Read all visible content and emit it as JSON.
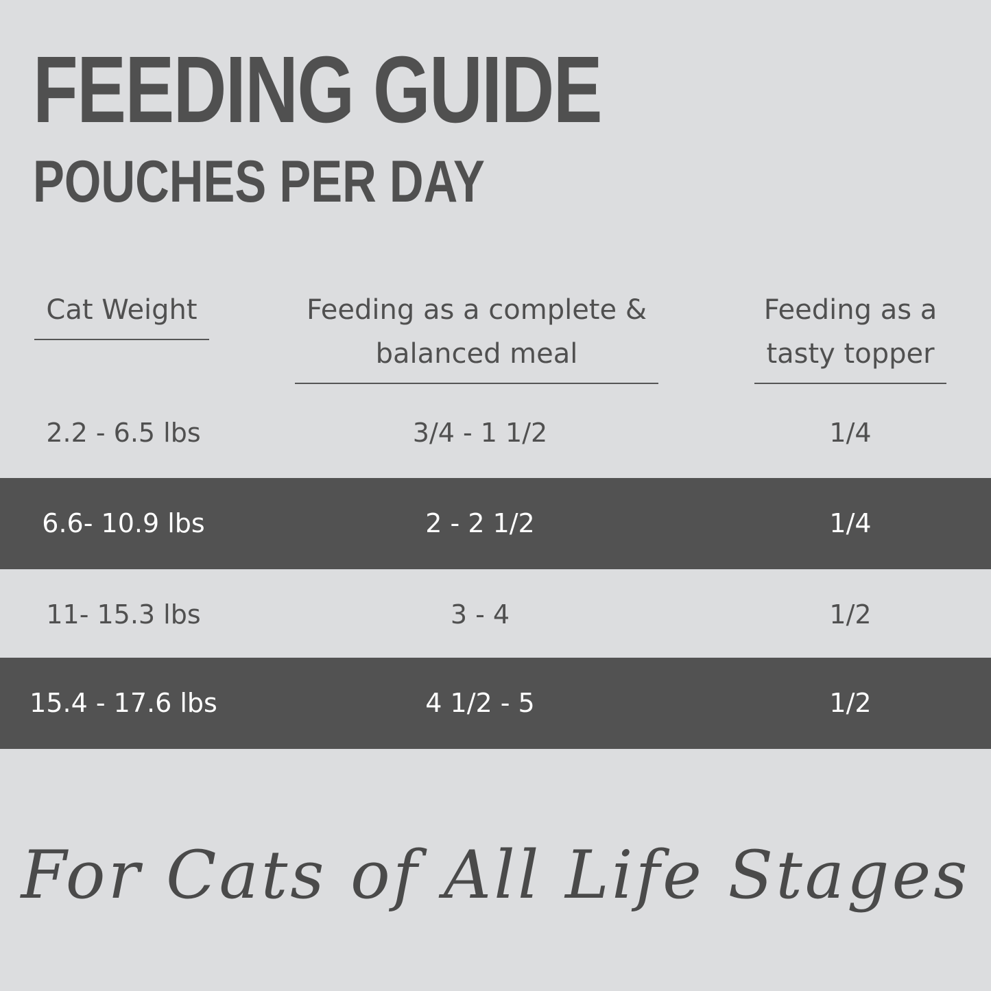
{
  "header": {
    "title": "FEEDING GUIDE",
    "subtitle": "POUCHES PER DAY"
  },
  "table": {
    "columns": [
      "Cat Weight",
      "Feeding as a complete & balanced meal",
      "Feeding as a tasty topper"
    ],
    "rows": [
      [
        "2.2 - 6.5 lbs",
        "3/4 - 1 1/2",
        "1/4"
      ],
      [
        "6.6- 10.9 lbs",
        "2 - 2 1/2",
        "1/4"
      ],
      [
        "11- 15.3 lbs",
        "3 - 4",
        "1/2"
      ],
      [
        "15.4 - 17.6 lbs",
        "4 1/2 - 5",
        "1/2"
      ]
    ]
  },
  "footer": {
    "tagline": "For Cats of All Life Stages"
  }
}
